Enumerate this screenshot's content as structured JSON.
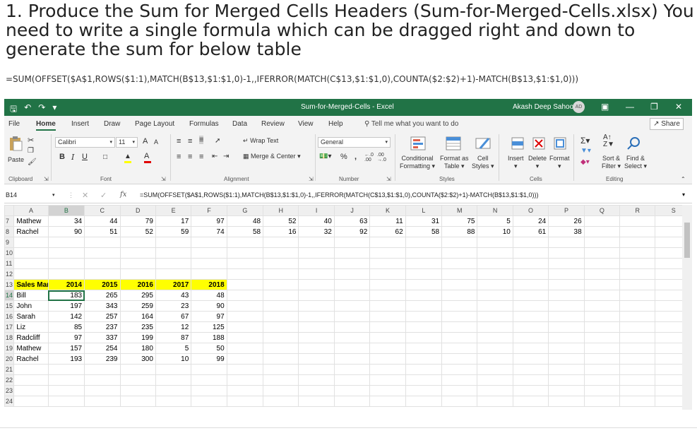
{
  "article": {
    "title": "1. Produce the Sum for Merged Cells Headers (Sum-for-Merged-Cells.xlsx) You need to write a single formula which can be dragged right and down to generate the sum for below table",
    "formula": "=SUM(OFFSET($A$1,ROWS($1:1),MATCH(B$13,$1:$1,0)-1,,IFERROR(MATCH(C$13,$1:$1,0),COUNTA($2:$2)+1)-MATCH(B$13,$1:$1,0)))"
  },
  "excel": {
    "doc_title": "Sum-for-Merged-Cells - Excel",
    "user_name": "Akash Deep Sahoo",
    "user_initials": "AD",
    "menu_tabs": [
      "File",
      "Home",
      "Insert",
      "Draw",
      "Page Layout",
      "Formulas",
      "Data",
      "Review",
      "View",
      "Help"
    ],
    "tell_me": "Tell me what you want to do",
    "share": "Share",
    "ribbon": {
      "paste": "Paste",
      "font_name": "Calibri",
      "font_size": "11",
      "wrap_text": "Wrap Text",
      "merge_center": "Merge & Center",
      "number_format": "General",
      "conditional_formatting": "Conditional",
      "conditional_formatting_2": "Formatting",
      "format_as_table": "Format as",
      "format_as_table_2": "Table",
      "cell_styles": "Cell",
      "cell_styles_2": "Styles",
      "insert": "Insert",
      "delete": "Delete",
      "format": "Format",
      "sort_filter": "Sort &",
      "sort_filter_2": "Filter",
      "find_select": "Find &",
      "find_select_2": "Select",
      "groups": [
        "Clipboard",
        "Font",
        "Alignment",
        "Number",
        "Styles",
        "Cells",
        "Editing"
      ],
      "bold": "B",
      "italic": "I",
      "underline": "U",
      "percent": "%",
      "comma": ",",
      "grow_font": "A",
      "shrink_font": "A"
    },
    "name_box": "B14",
    "formula_bar": "=SUM(OFFSET($A$1,ROWS($1:1),MATCH(B$13,$1:$1,0)-1,,IFERROR(MATCH(C$13,$1:$1,0),COUNTA($2:$2)+1)-MATCH(B$13,$1:$1,0)))",
    "columns": [
      "A",
      "B",
      "C",
      "D",
      "E",
      "F",
      "G",
      "H",
      "I",
      "J",
      "K",
      "L",
      "M",
      "N",
      "O",
      "P",
      "Q",
      "R",
      "S"
    ],
    "rows": [
      {
        "num": "7",
        "cells": [
          "Mathew",
          "34",
          "44",
          "79",
          "17",
          "97",
          "48",
          "52",
          "40",
          "63",
          "11",
          "31",
          "75",
          "5",
          "24",
          "26",
          "",
          "",
          ""
        ]
      },
      {
        "num": "8",
        "cells": [
          "Rachel",
          "90",
          "51",
          "52",
          "59",
          "74",
          "58",
          "16",
          "32",
          "92",
          "62",
          "58",
          "88",
          "10",
          "61",
          "38",
          "",
          "",
          ""
        ]
      },
      {
        "num": "9",
        "cells": [
          "",
          "",
          "",
          "",
          "",
          "",
          "",
          "",
          "",
          "",
          "",
          "",
          "",
          "",
          "",
          "",
          "",
          "",
          ""
        ]
      },
      {
        "num": "10",
        "cells": [
          "",
          "",
          "",
          "",
          "",
          "",
          "",
          "",
          "",
          "",
          "",
          "",
          "",
          "",
          "",
          "",
          "",
          "",
          ""
        ]
      },
      {
        "num": "11",
        "cells": [
          "",
          "",
          "",
          "",
          "",
          "",
          "",
          "",
          "",
          "",
          "",
          "",
          "",
          "",
          "",
          "",
          "",
          "",
          ""
        ]
      },
      {
        "num": "12",
        "cells": [
          "",
          "",
          "",
          "",
          "",
          "",
          "",
          "",
          "",
          "",
          "",
          "",
          "",
          "",
          "",
          "",
          "",
          "",
          ""
        ]
      },
      {
        "num": "13",
        "cells": [
          "Sales Man",
          "2014",
          "2015",
          "2016",
          "2017",
          "2018",
          "",
          "",
          "",
          "",
          "",
          "",
          "",
          "",
          "",
          "",
          "",
          "",
          ""
        ]
      },
      {
        "num": "14",
        "cells": [
          "Bill",
          "183",
          "265",
          "295",
          "43",
          "48",
          "",
          "",
          "",
          "",
          "",
          "",
          "",
          "",
          "",
          "",
          "",
          "",
          ""
        ]
      },
      {
        "num": "15",
        "cells": [
          "John",
          "197",
          "343",
          "259",
          "23",
          "90",
          "",
          "",
          "",
          "",
          "",
          "",
          "",
          "",
          "",
          "",
          "",
          "",
          ""
        ]
      },
      {
        "num": "16",
        "cells": [
          "Sarah",
          "142",
          "257",
          "164",
          "67",
          "97",
          "",
          "",
          "",
          "",
          "",
          "",
          "",
          "",
          "",
          "",
          "",
          "",
          ""
        ]
      },
      {
        "num": "17",
        "cells": [
          "Liz",
          "85",
          "237",
          "235",
          "12",
          "125",
          "",
          "",
          "",
          "",
          "",
          "",
          "",
          "",
          "",
          "",
          "",
          "",
          ""
        ]
      },
      {
        "num": "18",
        "cells": [
          "Radcliff",
          "97",
          "337",
          "199",
          "87",
          "188",
          "",
          "",
          "",
          "",
          "",
          "",
          "",
          "",
          "",
          "",
          "",
          "",
          ""
        ]
      },
      {
        "num": "19",
        "cells": [
          "Mathew",
          "157",
          "254",
          "180",
          "5",
          "50",
          "",
          "",
          "",
          "",
          "",
          "",
          "",
          "",
          "",
          "",
          "",
          "",
          ""
        ]
      },
      {
        "num": "20",
        "cells": [
          "Rachel",
          "193",
          "239",
          "300",
          "10",
          "99",
          "",
          "",
          "",
          "",
          "",
          "",
          "",
          "",
          "",
          "",
          "",
          "",
          ""
        ]
      },
      {
        "num": "21",
        "cells": [
          "",
          "",
          "",
          "",
          "",
          "",
          "",
          "",
          "",
          "",
          "",
          "",
          "",
          "",
          "",
          "",
          "",
          "",
          ""
        ]
      },
      {
        "num": "22",
        "cells": [
          "",
          "",
          "",
          "",
          "",
          "",
          "",
          "",
          "",
          "",
          "",
          "",
          "",
          "",
          "",
          "",
          "",
          "",
          ""
        ]
      },
      {
        "num": "23",
        "cells": [
          "",
          "",
          "",
          "",
          "",
          "",
          "",
          "",
          "",
          "",
          "",
          "",
          "",
          "",
          "",
          "",
          "",
          "",
          ""
        ]
      },
      {
        "num": "24",
        "cells": [
          "",
          "",
          "",
          "",
          "",
          "",
          "",
          "",
          "",
          "",
          "",
          "",
          "",
          "",
          "",
          "",
          "",
          "",
          ""
        ]
      }
    ],
    "colors": {
      "excel_green": "#217346",
      "header_highlight": "#ffff00"
    }
  }
}
